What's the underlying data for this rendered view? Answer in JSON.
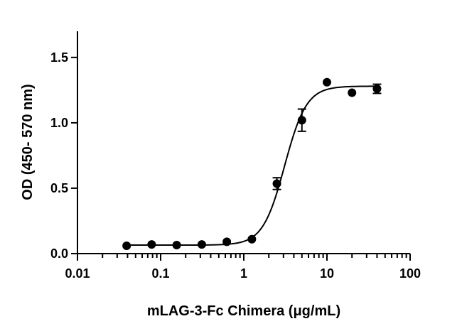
{
  "chart_data": {
    "type": "scatter",
    "xlabel": "mLAG-3-Fc Chimera (μg/mL)",
    "ylabel": "OD (450- 570 nm)",
    "x_scale": "log",
    "xlim": [
      0.01,
      100
    ],
    "ylim": [
      0,
      1.7
    ],
    "x_ticks": [
      0.01,
      0.1,
      1,
      10,
      100
    ],
    "x_tick_labels": [
      "0.01",
      "0.1",
      "1",
      "10",
      "100"
    ],
    "y_ticks": [
      0.0,
      0.5,
      1.0,
      1.5
    ],
    "y_tick_labels": [
      "0.0",
      "0.5",
      "1.0",
      "1.5"
    ],
    "grid": false,
    "marker_color": "#000000",
    "series": [
      {
        "x": [
          0.039,
          0.078,
          0.156,
          0.3125,
          0.625,
          1.25,
          2.5,
          5,
          10,
          20,
          40
        ],
        "y": [
          0.06,
          0.07,
          0.065,
          0.07,
          0.09,
          0.11,
          0.535,
          1.02,
          1.31,
          1.23,
          1.26
        ],
        "error": [
          0,
          0,
          0,
          0,
          0,
          0,
          0.045,
          0.085,
          0,
          0,
          0.035
        ]
      }
    ],
    "fit": {
      "model": "4PL",
      "bottom": 0.065,
      "top": 1.28,
      "ec50": 3.1,
      "hill": 3.3
    }
  }
}
